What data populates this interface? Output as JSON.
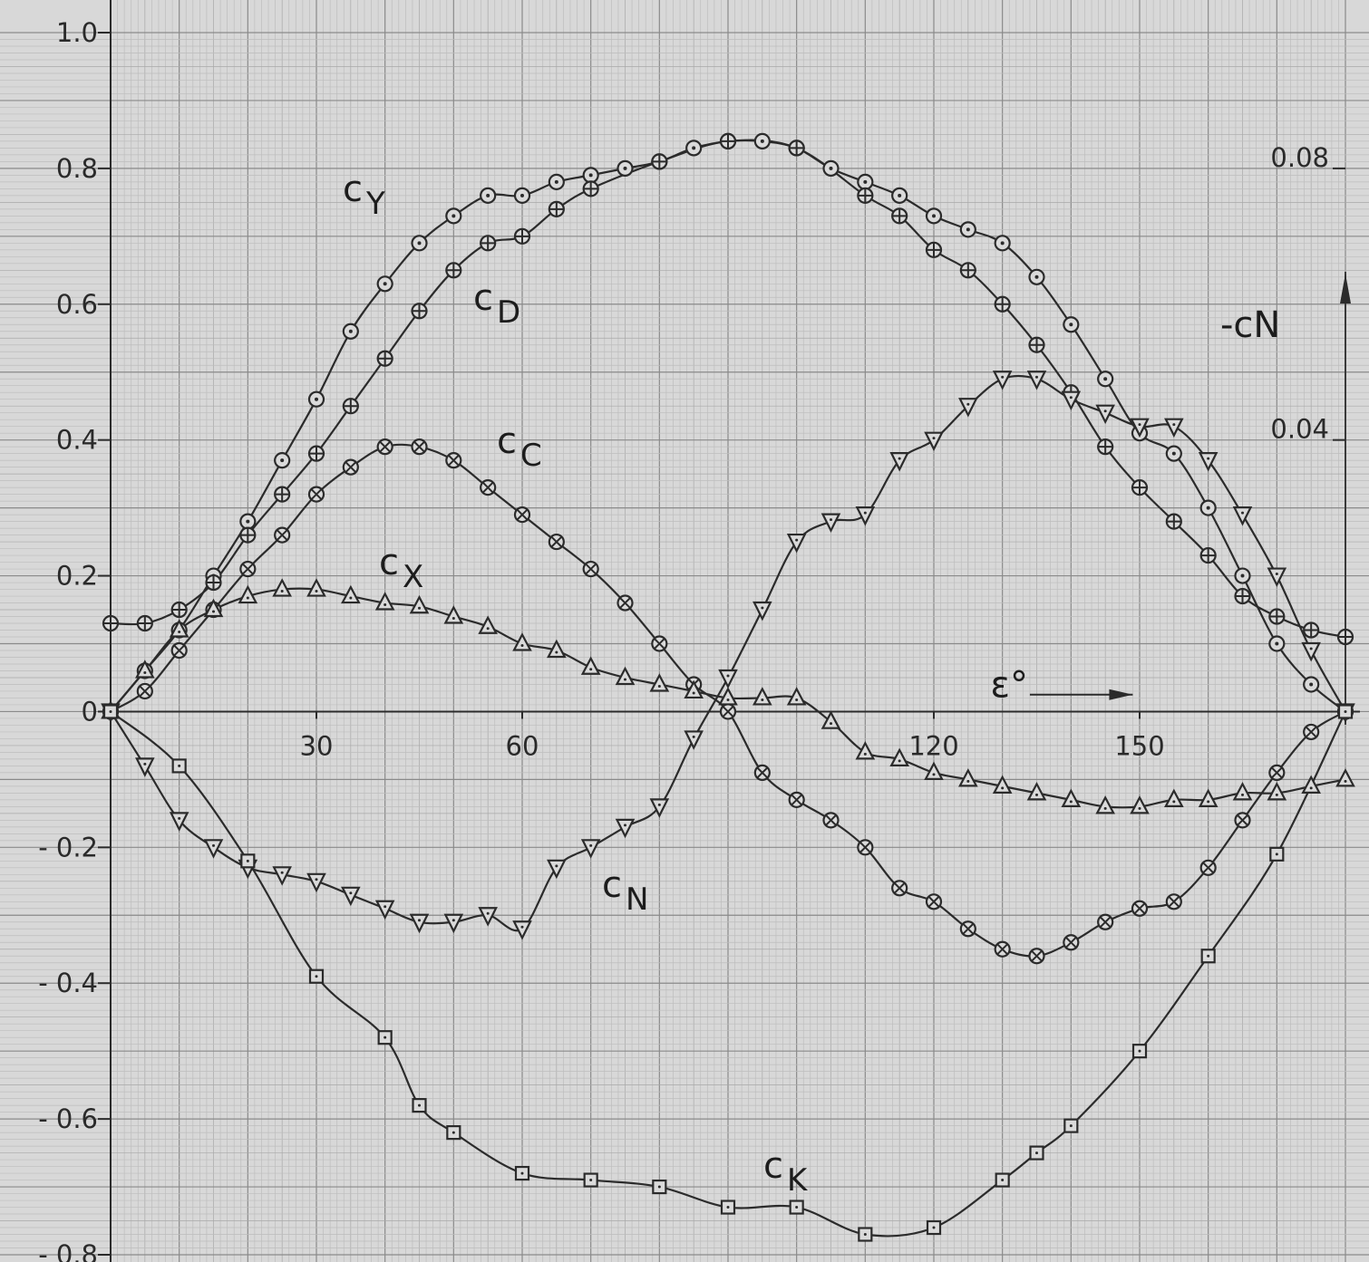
{
  "chart_data": {
    "type": "line",
    "title": "",
    "xlabel": "ε°",
    "ylabel": "",
    "xlim": [
      0,
      180
    ],
    "ylim": [
      -0.8,
      1.0
    ],
    "y2lim": [
      -0.08,
      0.1
    ],
    "grid": true,
    "x_ticks": [
      "30",
      "60",
      "120",
      "150"
    ],
    "y_ticks": [
      "1.0",
      "0.8",
      "0.6",
      "0.4",
      "0.2",
      "0",
      "- 0.2",
      "- 0.4",
      "- 0.6",
      "- 0.8"
    ],
    "y2_ticks": [
      "0.08",
      "0.04"
    ],
    "y2_label": "-cN",
    "series": [
      {
        "name": "cY",
        "label_main": "c",
        "label_sub": "Y",
        "marker": "dot-circle",
        "axis": "left",
        "x": [
          0,
          5,
          10,
          15,
          20,
          25,
          30,
          35,
          40,
          45,
          50,
          55,
          60,
          65,
          70,
          75,
          80,
          85,
          90,
          95,
          100,
          105,
          110,
          115,
          120,
          125,
          130,
          135,
          140,
          145,
          150,
          155,
          160,
          165,
          170,
          175,
          180
        ],
        "y": [
          0,
          0.06,
          0.12,
          0.2,
          0.28,
          0.37,
          0.46,
          0.56,
          0.63,
          0.69,
          0.73,
          0.76,
          0.76,
          0.78,
          0.79,
          0.8,
          0.81,
          0.83,
          0.84,
          0.84,
          0.83,
          0.8,
          0.78,
          0.76,
          0.73,
          0.71,
          0.69,
          0.64,
          0.57,
          0.49,
          0.41,
          0.38,
          0.3,
          0.2,
          0.1,
          0.04,
          0
        ]
      },
      {
        "name": "cD",
        "label_main": "c",
        "label_sub": "D",
        "marker": "plus-circle",
        "axis": "left",
        "x": [
          0,
          5,
          10,
          15,
          20,
          25,
          30,
          35,
          40,
          45,
          50,
          55,
          60,
          65,
          70,
          80,
          90,
          100,
          110,
          115,
          120,
          125,
          130,
          135,
          140,
          145,
          150,
          155,
          160,
          165,
          170,
          175,
          180
        ],
        "y": [
          0.13,
          0.13,
          0.15,
          0.19,
          0.26,
          0.32,
          0.38,
          0.45,
          0.52,
          0.59,
          0.65,
          0.69,
          0.7,
          0.74,
          0.77,
          0.81,
          0.84,
          0.83,
          0.76,
          0.73,
          0.68,
          0.65,
          0.6,
          0.54,
          0.47,
          0.39,
          0.33,
          0.28,
          0.23,
          0.17,
          0.14,
          0.12,
          0.11
        ]
      },
      {
        "name": "cC",
        "label_main": "c",
        "label_sub": "C",
        "marker": "x-circle",
        "axis": "left",
        "x": [
          0,
          5,
          10,
          15,
          20,
          25,
          30,
          35,
          40,
          45,
          50,
          55,
          60,
          65,
          70,
          75,
          80,
          85,
          90,
          95,
          100,
          105,
          110,
          115,
          120,
          125,
          130,
          135,
          140,
          145,
          150,
          155,
          160,
          165,
          170,
          175,
          180
        ],
        "y": [
          0,
          0.03,
          0.09,
          0.15,
          0.21,
          0.26,
          0.32,
          0.36,
          0.39,
          0.39,
          0.37,
          0.33,
          0.29,
          0.25,
          0.21,
          0.16,
          0.1,
          0.04,
          0,
          -0.09,
          -0.13,
          -0.16,
          -0.2,
          -0.26,
          -0.28,
          -0.32,
          -0.35,
          -0.36,
          -0.34,
          -0.31,
          -0.29,
          -0.28,
          -0.23,
          -0.16,
          -0.09,
          -0.03,
          0
        ]
      },
      {
        "name": "cX",
        "label_main": "c",
        "label_sub": "X",
        "marker": "triangle-up",
        "axis": "left",
        "x": [
          0,
          5,
          10,
          15,
          20,
          25,
          30,
          35,
          40,
          45,
          50,
          55,
          60,
          65,
          70,
          75,
          80,
          85,
          90,
          95,
          100,
          105,
          110,
          115,
          120,
          125,
          130,
          135,
          140,
          145,
          150,
          155,
          160,
          165,
          170,
          175,
          180
        ],
        "y": [
          0,
          0.06,
          0.12,
          0.15,
          0.17,
          0.18,
          0.18,
          0.17,
          0.16,
          0.155,
          0.14,
          0.125,
          0.1,
          0.09,
          0.065,
          0.05,
          0.04,
          0.03,
          0.02,
          0.02,
          0.02,
          -0.015,
          -0.06,
          -0.07,
          -0.09,
          -0.1,
          -0.11,
          -0.12,
          -0.13,
          -0.14,
          -0.14,
          -0.13,
          -0.13,
          -0.12,
          -0.12,
          -0.11,
          -0.1
        ]
      },
      {
        "name": "cN",
        "label_main": "c",
        "label_sub": "N",
        "marker": "triangle-down",
        "axis": "right",
        "x": [
          0,
          5,
          10,
          15,
          20,
          25,
          30,
          35,
          40,
          45,
          50,
          55,
          60,
          65,
          70,
          75,
          80,
          85,
          90,
          95,
          100,
          105,
          110,
          115,
          120,
          125,
          130,
          135,
          140,
          145,
          150,
          155,
          160,
          165,
          170,
          175,
          180
        ],
        "y": [
          0,
          -0.008,
          -0.016,
          -0.02,
          -0.023,
          -0.024,
          -0.025,
          -0.027,
          -0.029,
          -0.031,
          -0.031,
          -0.03,
          -0.032,
          -0.023,
          -0.02,
          -0.017,
          -0.014,
          -0.004,
          0.005,
          0.015,
          0.025,
          0.028,
          0.029,
          0.037,
          0.04,
          0.045,
          0.049,
          0.049,
          0.046,
          0.044,
          0.042,
          0.042,
          0.037,
          0.029,
          0.02,
          0.009,
          0
        ]
      },
      {
        "name": "cK",
        "label_main": "c",
        "label_sub": "K",
        "marker": "dot-square",
        "axis": "left",
        "x": [
          0,
          10,
          20,
          30,
          40,
          45,
          50,
          60,
          70,
          80,
          90,
          100,
          110,
          120,
          130,
          135,
          140,
          150,
          160,
          170,
          180
        ],
        "y": [
          0,
          -0.08,
          -0.22,
          -0.39,
          -0.48,
          -0.58,
          -0.62,
          -0.68,
          -0.69,
          -0.7,
          -0.73,
          -0.73,
          -0.77,
          -0.76,
          -0.69,
          -0.65,
          -0.61,
          -0.5,
          -0.36,
          -0.21,
          0
        ]
      }
    ]
  }
}
